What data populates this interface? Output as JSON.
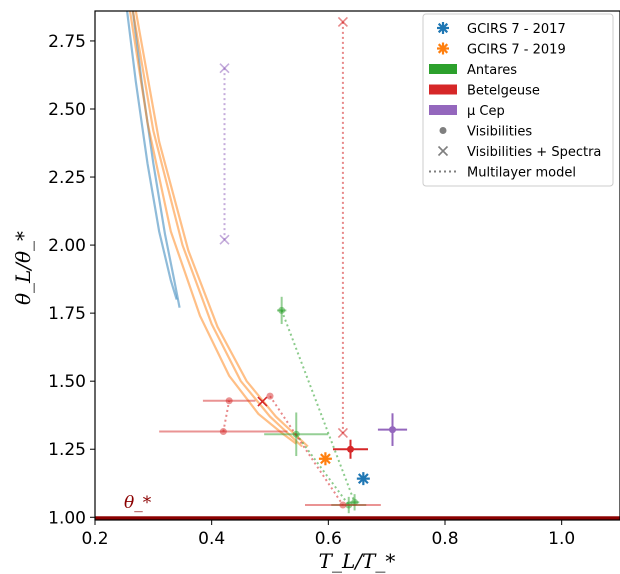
{
  "chart_data": {
    "type": "scatter",
    "xlabel": "T_L/T_*",
    "ylabel": "θ_L/θ_*",
    "xlim": [
      0.2,
      1.1
    ],
    "ylim": [
      0.99,
      2.86
    ],
    "x_ticks": [
      "0.2",
      "0.4",
      "0.6",
      "0.8",
      "1.0"
    ],
    "y_ticks": [
      "1.00",
      "1.25",
      "1.50",
      "1.75",
      "2.00",
      "2.25",
      "2.50",
      "2.75"
    ],
    "x_tick_values": [
      0.2,
      0.4,
      0.6,
      0.8,
      1.0
    ],
    "y_tick_values": [
      1.0,
      1.25,
      1.5,
      1.75,
      2.0,
      2.25,
      2.5,
      2.75
    ],
    "legend": {
      "placement": "top-right",
      "entries": [
        {
          "label": "GCIRS 7 - 2017",
          "marker": "asterisk",
          "color": "#1f77b4"
        },
        {
          "label": "GCIRS 7 - 2019",
          "marker": "asterisk",
          "color": "#ff7f0e"
        },
        {
          "label": "Antares",
          "marker": "patch",
          "color": "#2ca02c"
        },
        {
          "label": "Betelgeuse",
          "marker": "patch",
          "color": "#d62728"
        },
        {
          "label": "μ Cep",
          "marker": "patch",
          "color": "#9467bd"
        },
        {
          "label": "Visibilities",
          "marker": "dot",
          "color": "#7f7f7f"
        },
        {
          "label": "Visibilities + Spectra",
          "marker": "x",
          "color": "#7f7f7f"
        },
        {
          "label": "Multilayer model",
          "marker": "dotted",
          "color": "#7f7f7f"
        }
      ]
    },
    "reference_line": {
      "label": "θ_*",
      "y": 1.0,
      "color": "#8b0000"
    },
    "colors": {
      "gcirs2017": "#1f77b4",
      "gcirs2019": "#ff7f0e",
      "antares": "#2ca02c",
      "betelgeuse": "#d62728",
      "mucep": "#9467bd"
    },
    "series": [
      {
        "name": "GCIRS 7 - 2017",
        "color": "#1f77b4",
        "marker": "asterisk",
        "points": [
          {
            "x": 0.66,
            "y": 1.142,
            "xerr": 0.01,
            "yerr": 0.01
          }
        ],
        "model_curves": [
          {
            "points": [
              [
                0.255,
                2.86
              ],
              [
                0.27,
                2.6
              ],
              [
                0.29,
                2.3
              ],
              [
                0.31,
                2.05
              ],
              [
                0.33,
                1.87
              ],
              [
                0.34,
                1.8
              ]
            ]
          },
          {
            "points": [
              [
                0.265,
                2.86
              ],
              [
                0.28,
                2.6
              ],
              [
                0.3,
                2.3
              ],
              [
                0.32,
                2.04
              ],
              [
                0.335,
                1.88
              ],
              [
                0.345,
                1.77
              ]
            ]
          }
        ]
      },
      {
        "name": "GCIRS 7 - 2019",
        "color": "#ff7f0e",
        "marker": "asterisk",
        "points": [
          {
            "x": 0.595,
            "y": 1.215,
            "xerr": 0.01,
            "yerr": 0.01
          }
        ],
        "model_curves": [
          {
            "points": [
              [
                0.26,
                2.86
              ],
              [
                0.29,
                2.45
              ],
              [
                0.33,
                2.05
              ],
              [
                0.38,
                1.74
              ],
              [
                0.43,
                1.52
              ],
              [
                0.48,
                1.38
              ],
              [
                0.52,
                1.31
              ],
              [
                0.545,
                1.27
              ]
            ]
          },
          {
            "points": [
              [
                0.265,
                2.86
              ],
              [
                0.3,
                2.42
              ],
              [
                0.35,
                2.0
              ],
              [
                0.4,
                1.71
              ],
              [
                0.45,
                1.5
              ],
              [
                0.5,
                1.37
              ],
              [
                0.535,
                1.3
              ],
              [
                0.555,
                1.26
              ]
            ]
          },
          {
            "points": [
              [
                0.27,
                2.86
              ],
              [
                0.31,
                2.38
              ],
              [
                0.36,
                1.98
              ],
              [
                0.41,
                1.7
              ],
              [
                0.46,
                1.5
              ],
              [
                0.51,
                1.37
              ],
              [
                0.545,
                1.3
              ],
              [
                0.565,
                1.26
              ]
            ]
          }
        ]
      },
      {
        "name": "Antares",
        "color": "#2ca02c",
        "points": [
          {
            "x": 0.52,
            "y": 1.76,
            "marker": "dot",
            "xerr": 0.008,
            "yerr": 0.05
          },
          {
            "x": 0.545,
            "y": 1.305,
            "marker": "dot",
            "xerr": 0.055,
            "yerr": 0.08
          },
          {
            "x": 0.635,
            "y": 1.045,
            "marker": "dot",
            "xerr": 0.03,
            "yerr": 0.03
          },
          {
            "x": 0.645,
            "y": 1.055,
            "marker": "dot",
            "xerr": 0.008,
            "yerr": 0.03
          }
        ],
        "model_links": [
          [
            [
              0.52,
              1.76
            ],
            [
              0.645,
              1.055
            ]
          ],
          [
            [
              0.545,
              1.305
            ],
            [
              0.635,
              1.045
            ]
          ]
        ]
      },
      {
        "name": "Betelgeuse",
        "color": "#d62728",
        "points": [
          {
            "x": 0.43,
            "y": 1.428,
            "marker": "dot",
            "xerr": 0.045,
            "yerr": 0.0
          },
          {
            "x": 0.42,
            "y": 1.315,
            "marker": "dot",
            "xerr": 0.11,
            "yerr": 0.0
          },
          {
            "x": 0.5,
            "y": 1.445,
            "marker": "dot",
            "xerr": 0.0,
            "yerr": 0.0
          },
          {
            "x": 0.487,
            "y": 1.425,
            "marker": "x",
            "xerr": 0.0,
            "yerr": 0.0
          },
          {
            "x": 0.625,
            "y": 1.045,
            "marker": "dot",
            "xerr": 0.065,
            "yerr": 0.0
          },
          {
            "x": 0.638,
            "y": 1.25,
            "marker": "dot",
            "xerr": 0.03,
            "yerr": 0.035
          },
          {
            "x": 0.625,
            "y": 2.82,
            "marker": "x",
            "xerr": 0.0,
            "yerr": 0.0
          },
          {
            "x": 0.625,
            "y": 1.31,
            "marker": "x",
            "xerr": 0.0,
            "yerr": 0.0
          }
        ],
        "model_links": [
          [
            [
              0.42,
              1.315
            ],
            [
              0.43,
              1.428
            ]
          ],
          [
            [
              0.5,
              1.445
            ],
            [
              0.625,
              1.045
            ]
          ],
          [
            [
              0.625,
              2.82
            ],
            [
              0.625,
              1.31
            ]
          ]
        ]
      },
      {
        "name": "μ Cep",
        "color": "#9467bd",
        "points": [
          {
            "x": 0.71,
            "y": 1.322,
            "marker": "dot",
            "xerr": 0.025,
            "yerr": 0.06
          },
          {
            "x": 0.422,
            "y": 2.65,
            "marker": "x",
            "xerr": 0.0,
            "yerr": 0.0
          },
          {
            "x": 0.422,
            "y": 2.02,
            "marker": "x",
            "xerr": 0.0,
            "yerr": 0.0
          }
        ],
        "model_links": [
          [
            [
              0.422,
              2.65
            ],
            [
              0.422,
              2.02
            ]
          ]
        ]
      }
    ]
  }
}
